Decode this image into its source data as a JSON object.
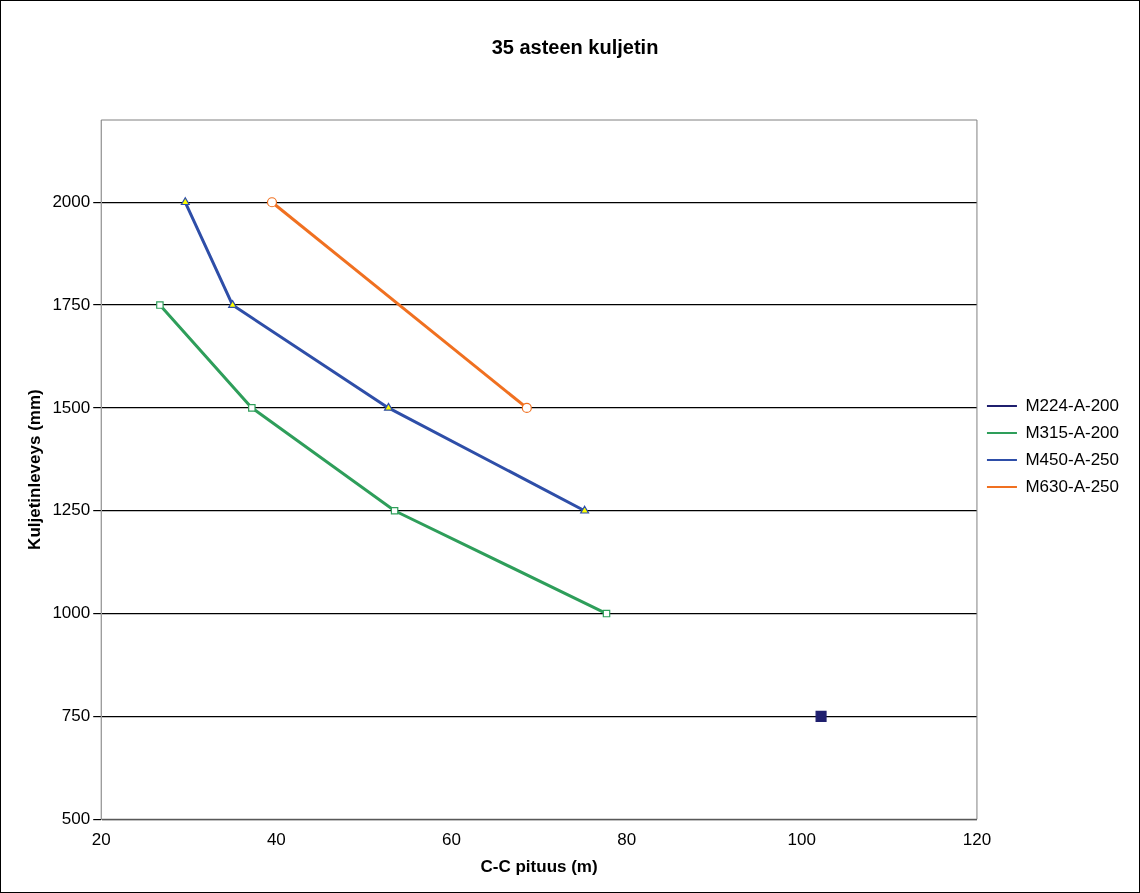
{
  "chart_data": {
    "type": "line",
    "title": "35 asteen kuljetin",
    "xlabel": "C-C pituus (m)",
    "ylabel": "Kuljetinleveys (mm)",
    "xlim": [
      20,
      120
    ],
    "xticks": [
      20,
      40,
      60,
      80,
      100,
      120
    ],
    "ylim": [
      500,
      2200
    ],
    "yticks": [
      500,
      750,
      1000,
      1250,
      1500,
      1750,
      2000
    ],
    "grid": "y",
    "legend": "right",
    "line_style": "solid",
    "series": [
      {
        "name": "M224-A-200",
        "color": "#1f1f6e",
        "marker": "square",
        "x": [
          102.2
        ],
        "values": [
          750
        ]
      },
      {
        "name": "M315-A-200",
        "color": "#2e9e5a",
        "marker": "square",
        "x": [
          26.7,
          37.2,
          53.5,
          77.7
        ],
        "values": [
          1750,
          1500,
          1250,
          1000
        ]
      },
      {
        "name": "M450-A-250",
        "color": "#2e4ea8",
        "marker": "triangle",
        "x": [
          29.6,
          35.0,
          52.8,
          75.2
        ],
        "values": [
          2000,
          1750,
          1500,
          1250
        ]
      },
      {
        "name": "M630-A-250",
        "color": "#f07020",
        "marker": "circle",
        "x": [
          39.5,
          68.6
        ],
        "values": [
          2000,
          1500
        ]
      }
    ]
  }
}
